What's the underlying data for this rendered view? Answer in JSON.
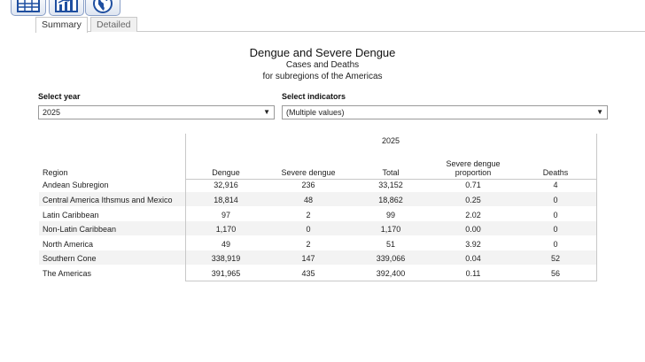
{
  "toolbar": {
    "icons": [
      "table-icon",
      "chart-icon",
      "globe-icon"
    ]
  },
  "tabs": [
    {
      "label": "Summary",
      "active": true
    },
    {
      "label": "Detailed",
      "active": false
    }
  ],
  "title": {
    "line1": "Dengue and Severe Dengue",
    "line2": "Cases and Deaths",
    "line3": "for subregions of the Americas"
  },
  "filters": {
    "year": {
      "label": "Select year",
      "value": "2025"
    },
    "indicators": {
      "label": "Select indicators",
      "value": "(Multiple values)"
    }
  },
  "table": {
    "year_header": "2025",
    "region_header": "Region",
    "columns": [
      "Dengue",
      "Severe dengue",
      "Total",
      "Severe dengue proportion",
      "Deaths"
    ],
    "rows": [
      {
        "region": "Andean Subregion",
        "values": [
          "32,916",
          "236",
          "33,152",
          "0.71",
          "4"
        ]
      },
      {
        "region": "Central America Ithsmus and Mexico",
        "values": [
          "18,814",
          "48",
          "18,862",
          "0.25",
          "0"
        ]
      },
      {
        "region": "Latin Caribbean",
        "values": [
          "97",
          "2",
          "99",
          "2.02",
          "0"
        ]
      },
      {
        "region": "Non-Latin Caribbean",
        "values": [
          "1,170",
          "0",
          "1,170",
          "0.00",
          "0"
        ]
      },
      {
        "region": "North America",
        "values": [
          "49",
          "2",
          "51",
          "3.92",
          "0"
        ]
      },
      {
        "region": "Southern Cone",
        "values": [
          "338,919",
          "147",
          "339,066",
          "0.04",
          "52"
        ]
      },
      {
        "region": "The Americas",
        "values": [
          "391,965",
          "435",
          "392,400",
          "0.11",
          "56"
        ]
      }
    ]
  },
  "colors": {
    "accent": "#1f4fa0",
    "stripe": "#f3f3f3",
    "border": "#c8c8c8"
  }
}
